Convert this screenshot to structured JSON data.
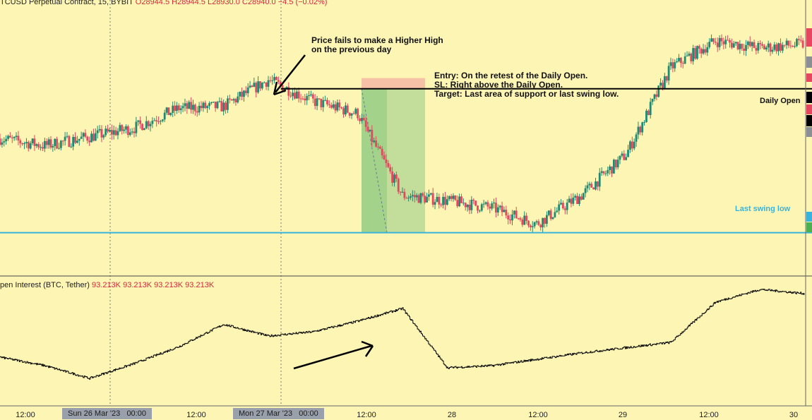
{
  "header": {
    "symbol": "TCUSD Perpetual Contract, 15, BYBIT",
    "open": "O28944.5",
    "high": "H28944.5",
    "low": "L28930.0",
    "close": "C28940.0",
    "change": "−4.5 (−0.02%)"
  },
  "oi_header": {
    "title": "pen Interest (BTC, Tether)",
    "values": [
      "93.213K",
      "93.213K",
      "93.213K",
      "93.213K"
    ]
  },
  "annotations": {
    "higher_high_note": "Price fails to make a Higher High\non the previous day",
    "entry_note": "Entry: On the retest of the Daily Open.\nSL: Right above the Daily Open.\nTarget: Last area of support or last swing low.",
    "daily_open_label": "Daily Open",
    "swing_low_label": "Last swing low"
  },
  "colors": {
    "background": "#fdf5b4",
    "up": "#1e8a72",
    "down": "#e4475f",
    "daily_open_line": "#000000",
    "swing_low_line": "#38b4dc",
    "stop_zone": "#f4b7a3",
    "target_zone": "#7cc47a"
  },
  "x_axis": {
    "ticks": [
      "12:00",
      "Sun 26 Mar '23",
      "00:00",
      "12:00",
      "Mon 27 Mar '23",
      "00:00",
      "12:00",
      "28",
      "12:00",
      "29",
      "12:00",
      "30"
    ]
  },
  "chart_data": [
    {
      "type": "candlestick",
      "title": "TCUSD Perpetual Contract, 15, BYBIT",
      "interval": "15",
      "x": [
        "25 Mar 12:00",
        "25 Mar 18:00",
        "26 Mar 00:00",
        "26 Mar 06:00",
        "26 Mar 12:00",
        "26 Mar 18:00",
        "27 Mar 00:00",
        "27 Mar 06:00",
        "27 Mar 12:00",
        "27 Mar 18:00",
        "28 Mar 00:00",
        "28 Mar 06:00",
        "28 Mar 12:00",
        "28 Mar 18:00",
        "29 Mar 00:00",
        "29 Mar 06:00",
        "29 Mar 12:00",
        "29 Mar 18:00",
        "30 Mar 00:00"
      ],
      "y": [
        27750,
        27710,
        27760,
        27810,
        27920,
        27930,
        28080,
        27960,
        27890,
        27430,
        27400,
        27360,
        27270,
        27430,
        27660,
        28150,
        28300,
        28260,
        28280
      ],
      "horizontal_levels": [
        {
          "name": "Daily Open",
          "value": 28030
        },
        {
          "name": "Last swing low",
          "value": 27220
        }
      ],
      "position_tool": {
        "stop": 28090,
        "entry": 28030,
        "target": 27220
      },
      "last_value": 28940.0
    },
    {
      "type": "line",
      "title": "pen Interest (BTC, Tether)",
      "x": [
        "25 Mar 12:00",
        "25 Mar 18:00",
        "26 Mar 00:00",
        "26 Mar 06:00",
        "26 Mar 12:00",
        "26 Mar 18:00",
        "27 Mar 00:00",
        "27 Mar 06:00",
        "27 Mar 12:00",
        "27 Mar 18:00",
        "28 Mar 00:00",
        "28 Mar 06:00",
        "28 Mar 12:00",
        "28 Mar 18:00",
        "29 Mar 00:00",
        "29 Mar 06:00",
        "29 Mar 12:00",
        "29 Mar 18:00",
        "30 Mar 00:00"
      ],
      "y": [
        0.36,
        0.28,
        0.16,
        0.3,
        0.46,
        0.67,
        0.56,
        0.6,
        0.7,
        0.82,
        0.26,
        0.28,
        0.34,
        0.4,
        0.45,
        0.5,
        0.88,
        1.0,
        0.96
      ],
      "units": "relative",
      "last_value_label": "93.213K"
    }
  ]
}
